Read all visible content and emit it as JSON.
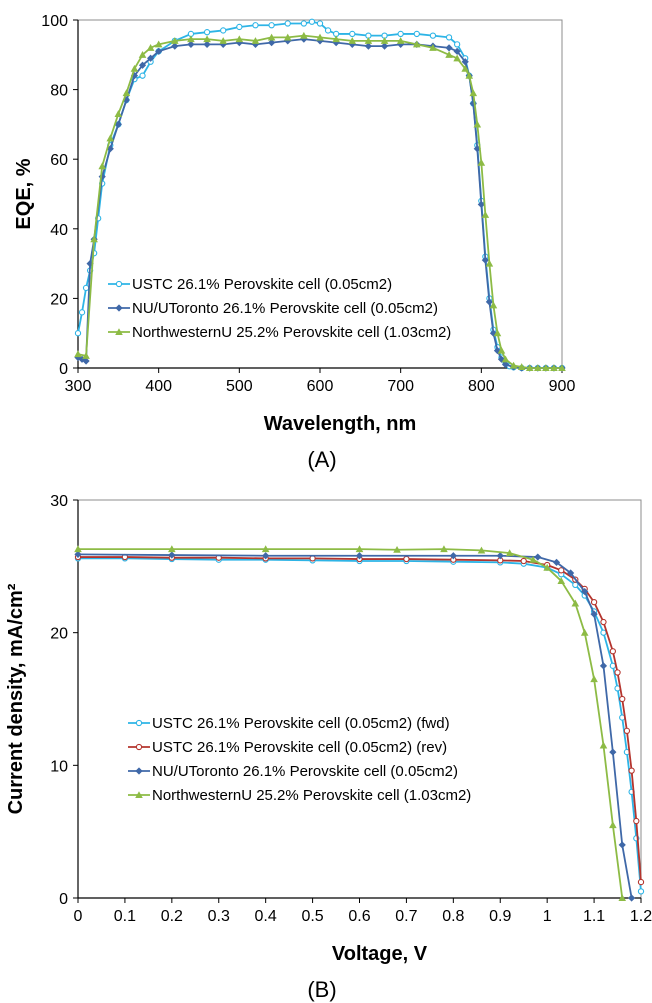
{
  "colors": {
    "usTC": "#2db4e6",
    "usTCrev": "#b4342d",
    "nu": "#3f68a8",
    "nw": "#8dbb45",
    "axis": "#000000",
    "box": "#8c8c8c"
  },
  "chart_data": [
    {
      "type": "line",
      "panel_label": "(A)",
      "xlabel": "Wavelength, nm",
      "ylabel": "EQE, %",
      "xlim": [
        300,
        900
      ],
      "ylim": [
        0,
        100
      ],
      "xticks": [
        300,
        400,
        500,
        600,
        700,
        800,
        900
      ],
      "yticks": [
        0,
        20,
        40,
        60,
        80,
        100
      ],
      "grid": false,
      "legend_position": "lower-left",
      "series": [
        {
          "name": "USTC 26.1% Perovskite cell (0.05cm2)",
          "color": "#2db4e6",
          "marker": "circle",
          "x": [
            300,
            305,
            310,
            315,
            320,
            325,
            330,
            340,
            350,
            360,
            370,
            380,
            390,
            400,
            420,
            440,
            460,
            480,
            500,
            520,
            540,
            560,
            580,
            590,
            600,
            610,
            620,
            640,
            660,
            680,
            700,
            720,
            740,
            760,
            770,
            780,
            785,
            790,
            795,
            800,
            805,
            810,
            815,
            820,
            825,
            830,
            835,
            840,
            850,
            860,
            870,
            880,
            890,
            900
          ],
          "y": [
            10,
            16,
            23,
            28,
            33,
            43,
            53,
            64,
            70,
            77,
            83,
            84,
            88,
            91,
            94,
            96,
            96.5,
            97,
            98,
            98.5,
            98.5,
            99,
            99,
            99.5,
            99,
            97,
            96,
            96,
            95.5,
            95.5,
            96,
            96,
            95.5,
            95,
            93,
            89,
            84,
            76,
            64,
            48,
            32,
            20,
            11,
            6,
            3,
            1.5,
            0.5,
            0.2,
            0,
            0,
            0,
            0,
            0,
            0
          ]
        },
        {
          "name": "NU/UToronto 26.1% Perovskite cell (0.05cm2)",
          "color": "#3f68a8",
          "marker": "diamond",
          "x": [
            300,
            305,
            310,
            315,
            320,
            330,
            340,
            350,
            360,
            370,
            380,
            390,
            400,
            420,
            440,
            460,
            480,
            500,
            520,
            540,
            560,
            580,
            600,
            620,
            640,
            660,
            680,
            700,
            720,
            740,
            760,
            770,
            780,
            785,
            790,
            795,
            800,
            805,
            810,
            815,
            820,
            825,
            830,
            840,
            850,
            860,
            870,
            880,
            890,
            900
          ],
          "y": [
            3,
            2.5,
            2,
            30,
            37,
            55,
            63,
            70,
            77,
            84,
            87,
            89,
            91,
            92.5,
            93,
            93,
            93,
            93.5,
            93,
            93.5,
            94,
            94.5,
            94,
            93.5,
            93,
            92.5,
            92.5,
            93,
            93,
            92.5,
            92,
            91,
            88,
            84,
            76,
            63,
            47,
            31,
            19,
            10,
            5,
            2.5,
            1,
            0.3,
            0,
            0,
            0,
            0,
            0,
            0
          ]
        },
        {
          "name": "NorthwesternU 25.2% Perovskite cell (1.03cm2)",
          "color": "#8dbb45",
          "marker": "triangle",
          "x": [
            300,
            310,
            320,
            330,
            340,
            350,
            360,
            370,
            380,
            390,
            400,
            420,
            440,
            460,
            480,
            500,
            520,
            540,
            560,
            580,
            600,
            620,
            640,
            660,
            680,
            700,
            720,
            740,
            760,
            770,
            780,
            785,
            790,
            795,
            800,
            805,
            810,
            815,
            820,
            825,
            830,
            840,
            850,
            860,
            870,
            880,
            890,
            900
          ],
          "y": [
            4,
            3.5,
            37,
            58,
            66,
            73,
            79,
            86,
            90,
            92,
            93,
            94,
            94.5,
            94.5,
            94,
            94.5,
            94,
            95,
            95,
            95.5,
            95,
            94.5,
            94,
            94,
            94,
            94,
            93,
            92,
            90,
            89,
            86,
            84,
            79,
            70,
            59,
            44,
            30,
            18,
            10,
            5,
            2.5,
            0.7,
            0.3,
            0,
            0,
            0,
            0,
            0
          ]
        }
      ]
    },
    {
      "type": "line",
      "panel_label": "(B)",
      "xlabel": "Voltage, V",
      "ylabel": "Current density, mA/cm²",
      "xlim": [
        0,
        1.2
      ],
      "ylim": [
        0,
        30
      ],
      "xticks": [
        0,
        0.1,
        0.2,
        0.3,
        0.4,
        0.5,
        0.6,
        0.7,
        0.8,
        0.9,
        1,
        1.1,
        1.2
      ],
      "xtick_labels": [
        "0",
        "0.1",
        "0.2",
        "0.3",
        "0.4",
        "0.5",
        "0.6",
        "0.7",
        "0.8",
        "0.9",
        "1",
        "1.1",
        "1.2"
      ],
      "yticks": [
        0,
        10,
        20,
        30
      ],
      "grid": false,
      "legend_position": "lower-left",
      "series": [
        {
          "name": "USTC 26.1% Perovskite cell (0.05cm2) (fwd)",
          "color": "#2db4e6",
          "marker": "circle",
          "x": [
            0,
            0.1,
            0.2,
            0.3,
            0.4,
            0.5,
            0.6,
            0.7,
            0.8,
            0.9,
            0.95,
            1.0,
            1.03,
            1.06,
            1.08,
            1.1,
            1.12,
            1.14,
            1.15,
            1.16,
            1.17,
            1.18,
            1.19,
            1.2
          ],
          "y": [
            25.6,
            25.6,
            25.55,
            25.5,
            25.5,
            25.45,
            25.4,
            25.4,
            25.35,
            25.3,
            25.2,
            24.9,
            24.4,
            23.6,
            22.8,
            21.6,
            20,
            17.5,
            15.8,
            13.6,
            11,
            8,
            4.5,
            0.5
          ]
        },
        {
          "name": "USTC 26.1% Perovskite cell (0.05cm2) (rev)",
          "color": "#b4342d",
          "marker": "circle",
          "x": [
            0,
            0.1,
            0.2,
            0.3,
            0.4,
            0.5,
            0.6,
            0.7,
            0.8,
            0.9,
            0.95,
            1.0,
            1.03,
            1.06,
            1.08,
            1.1,
            1.12,
            1.14,
            1.15,
            1.16,
            1.17,
            1.18,
            1.19,
            1.2
          ],
          "y": [
            25.7,
            25.7,
            25.65,
            25.65,
            25.6,
            25.6,
            25.55,
            25.55,
            25.5,
            25.45,
            25.4,
            25.1,
            24.7,
            24.0,
            23.3,
            22.3,
            20.8,
            18.6,
            17.0,
            15.0,
            12.6,
            9.6,
            5.8,
            1.2
          ]
        },
        {
          "name": "NU/UToronto 26.1% Perovskite cell (0.05cm2)",
          "color": "#3f68a8",
          "marker": "diamond",
          "x": [
            0,
            0.2,
            0.4,
            0.6,
            0.8,
            0.9,
            0.98,
            1.02,
            1.05,
            1.08,
            1.1,
            1.12,
            1.14,
            1.16,
            1.18
          ],
          "y": [
            25.9,
            25.85,
            25.8,
            25.8,
            25.8,
            25.8,
            25.7,
            25.3,
            24.5,
            23.1,
            21.4,
            17.5,
            11,
            4,
            0
          ]
        },
        {
          "name": "NorthwesternU 25.2% Perovskite cell (1.03cm2)",
          "color": "#8dbb45",
          "marker": "triangle",
          "x": [
            0,
            0.2,
            0.4,
            0.6,
            0.68,
            0.78,
            0.86,
            0.92,
            0.97,
            1.0,
            1.03,
            1.06,
            1.08,
            1.1,
            1.12,
            1.14,
            1.16
          ],
          "y": [
            26.3,
            26.3,
            26.3,
            26.3,
            26.25,
            26.3,
            26.2,
            26.0,
            25.5,
            24.9,
            23.9,
            22.2,
            20.0,
            16.5,
            11.5,
            5.5,
            0
          ]
        }
      ]
    }
  ]
}
